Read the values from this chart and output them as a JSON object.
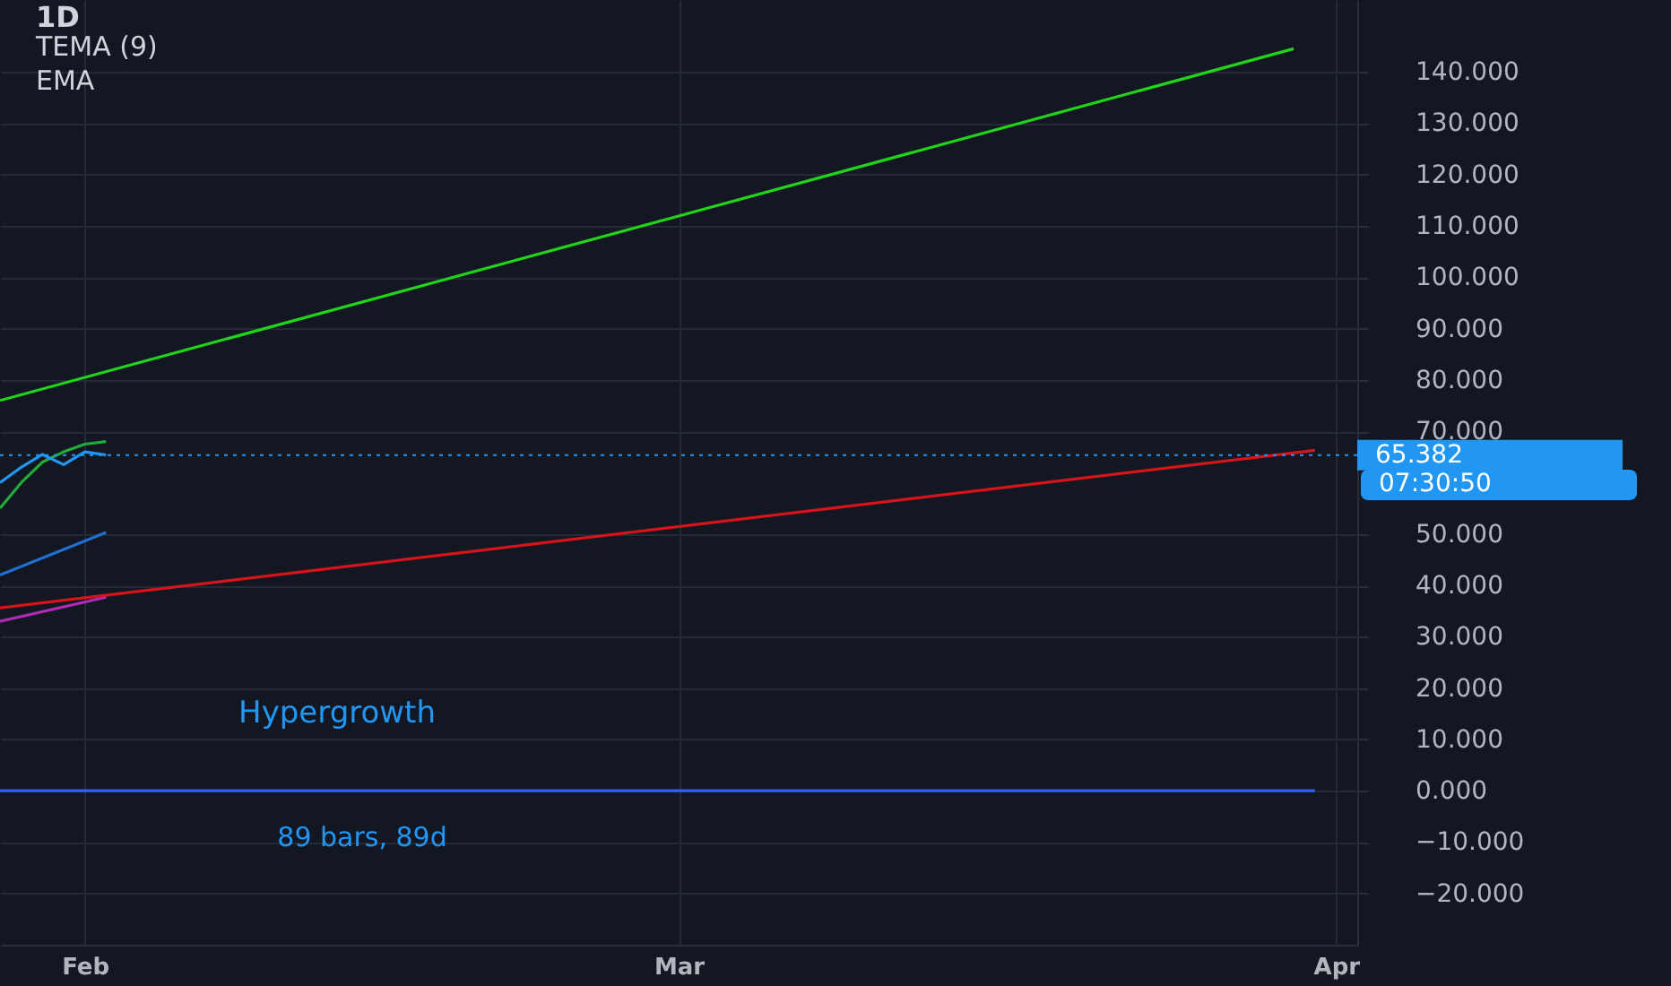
{
  "chart_data": {
    "type": "line",
    "title": "1D",
    "annotations": [
      "TEMA (9)",
      "EMA",
      "07:30:50",
      "Hypergrowth",
      "89 bars, 89d"
    ],
    "series": [
      {
        "color": "#1e6fd0",
        "x": [
          "--01-28",
          "--02-02"
        ],
        "values": [
          42,
          50.3
        ]
      },
      {
        "color": "#b02ab8",
        "x": [
          "--01-28",
          "--02-02"
        ],
        "values": [
          33,
          37.7
        ]
      },
      {
        "color": "#22ab3c",
        "x": [
          "--01-28",
          "--01-29",
          "--01-30",
          "--01-31",
          "--02-01",
          "--02-02"
        ],
        "values": [
          55,
          60,
          64,
          66,
          67.5,
          68
        ]
      },
      {
        "color": "#2196f3",
        "x": [
          "--01-28",
          "--01-29",
          "--01-30",
          "--01-31",
          "--02-01",
          "--02-02"
        ],
        "values": [
          60,
          63,
          65.5,
          63.5,
          66,
          65.4
        ]
      },
      {
        "color": "#22d31c",
        "x": [
          "--01-28",
          "--03-30"
        ],
        "values": [
          76,
          144.5
        ]
      },
      {
        "color": "#d5141c",
        "x": [
          "--01-28",
          "--03-31"
        ],
        "values": [
          35.6,
          66.3
        ]
      },
      {
        "color": "#2962ff",
        "x": [
          "--01-28",
          "--03-31"
        ],
        "values": [
          0,
          0
        ]
      }
    ],
    "xlim": [
      "--01-28",
      "--04-02"
    ],
    "xticks": [
      {
        "value": "--02-01",
        "label": "Feb"
      },
      {
        "value": "--03-01",
        "label": "Mar"
      },
      {
        "value": "--04-01",
        "label": "Apr"
      }
    ],
    "ylim": [
      -30,
      154
    ],
    "yticks": [
      {
        "value": -20,
        "label": "−20.000"
      },
      {
        "value": -10,
        "label": "−10.000"
      },
      {
        "value": 0,
        "label": "0.000"
      },
      {
        "value": 10,
        "label": "10.000"
      },
      {
        "value": 20,
        "label": "20.000"
      },
      {
        "value": 30,
        "label": "30.000"
      },
      {
        "value": 40,
        "label": "40.000"
      },
      {
        "value": 50,
        "label": "50.000"
      },
      {
        "value": 70,
        "label": "70.000"
      },
      {
        "value": 80,
        "label": "80.000"
      },
      {
        "value": 90,
        "label": "90.000"
      },
      {
        "value": 100,
        "label": "100.000"
      },
      {
        "value": 110,
        "label": "110.000"
      },
      {
        "value": 120,
        "label": "120.000"
      },
      {
        "value": 130,
        "label": "130.000"
      },
      {
        "value": 140,
        "label": "140.000"
      }
    ],
    "ref_lines": [
      {
        "axis": "y",
        "value": 65.382,
        "label": "65.382",
        "color": "#2196f3",
        "line_style": "dotted"
      }
    ],
    "grid": true
  }
}
